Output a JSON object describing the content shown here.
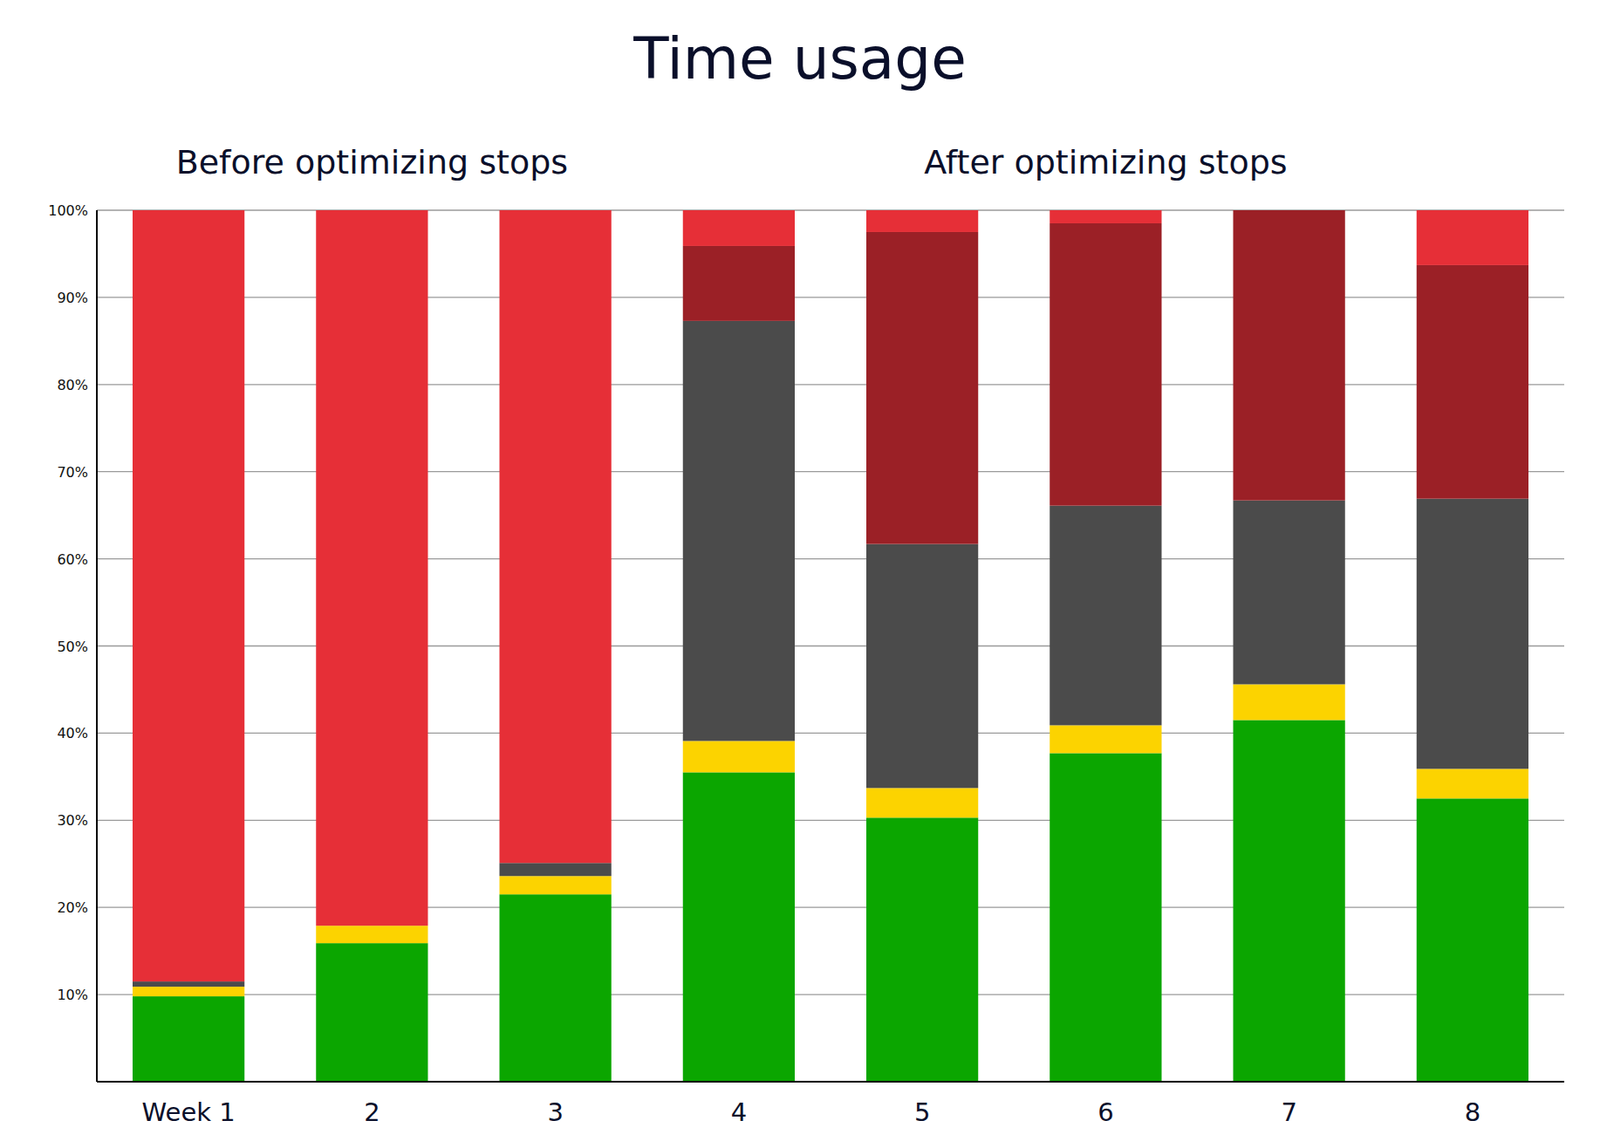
{
  "chart_data": {
    "type": "bar",
    "title": "Time usage",
    "annotations": [
      "Before optimizing stops",
      "After optimizing stops"
    ],
    "categories": [
      "Week 1",
      "2",
      "3",
      "4",
      "5",
      "6",
      "7",
      "8"
    ],
    "stacked": true,
    "grid": true,
    "ylim": [
      0,
      100
    ],
    "yticks": [
      {
        "value": 10,
        "label": "10%"
      },
      {
        "value": 20,
        "label": "20%"
      },
      {
        "value": 30,
        "label": "30%"
      },
      {
        "value": 40,
        "label": "40%"
      },
      {
        "value": 50,
        "label": "50%"
      },
      {
        "value": 60,
        "label": "60%"
      },
      {
        "value": 70,
        "label": "70%"
      },
      {
        "value": 80,
        "label": "80%"
      },
      {
        "value": 90,
        "label": "90%"
      },
      {
        "value": 100,
        "label": "100%"
      }
    ],
    "series": [
      {
        "color": "#0ba600",
        "values": [
          9.8,
          15.9,
          21.5,
          35.5,
          30.3,
          37.7,
          41.5,
          32.5
        ]
      },
      {
        "color": "#fcd300",
        "values": [
          1.1,
          2.0,
          2.1,
          3.6,
          3.4,
          3.2,
          4.1,
          3.4
        ]
      },
      {
        "color": "#4b4b4b",
        "values": [
          0.6,
          0,
          1.5,
          48.2,
          28.0,
          25.2,
          21.1,
          31.0
        ]
      },
      {
        "color": "#9b2026",
        "values": [
          0,
          0,
          0,
          8.6,
          35.8,
          32.4,
          33.3,
          26.8
        ]
      },
      {
        "color": "#e62f37",
        "values": [
          88.5,
          82.1,
          74.9,
          4.1,
          2.5,
          1.5,
          0,
          6.3
        ]
      }
    ]
  }
}
